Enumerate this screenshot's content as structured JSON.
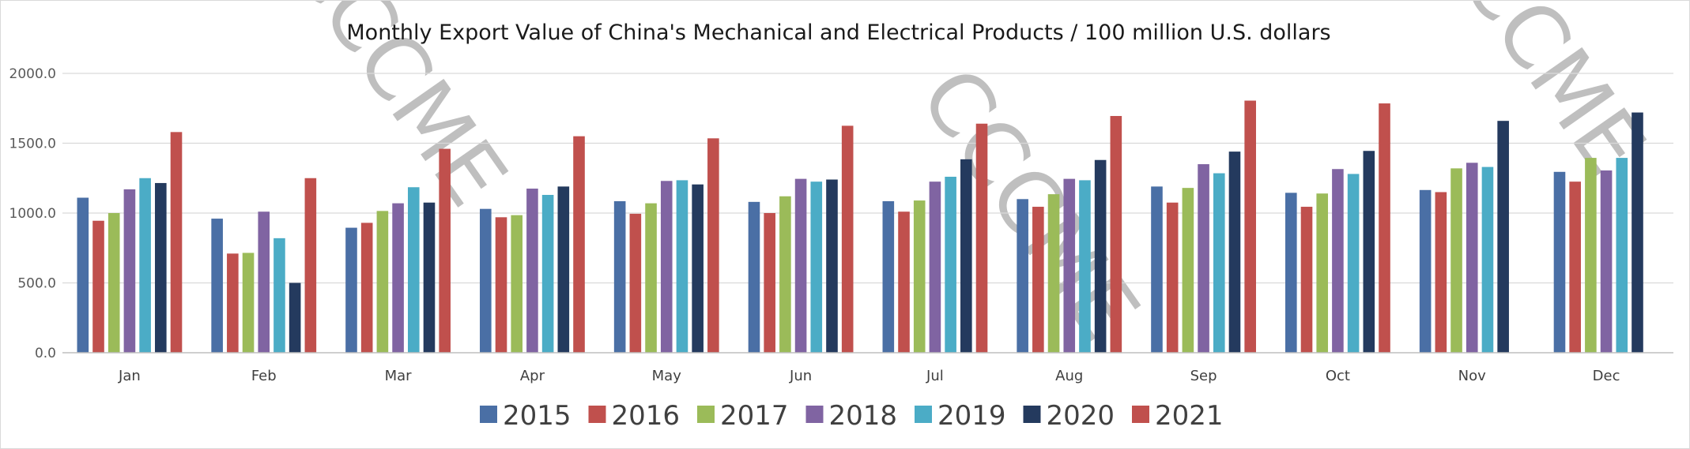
{
  "chart_data": {
    "type": "bar",
    "title": "Monthly Export Value of China's Mechanical and Electrical Products / 100 million U.S. dollars",
    "categories": [
      "Jan",
      "Feb",
      "Mar",
      "Apr",
      "May",
      "Jun",
      "Jul",
      "Aug",
      "Sep",
      "Oct",
      "Nov",
      "Dec"
    ],
    "ylim": [
      0,
      2000
    ],
    "yticks": [
      "0.0",
      "500.0",
      "1000.0",
      "1500.0",
      "2000.0"
    ],
    "grid": true,
    "legend_position": "bottom",
    "watermark": "CCCME",
    "series": [
      {
        "name": "2015",
        "color": "#4a6fa5",
        "values": [
          1110,
          960,
          895,
          1030,
          1085,
          1080,
          1085,
          1100,
          1190,
          1145,
          1165,
          1295
        ]
      },
      {
        "name": "2016",
        "color": "#c0504d",
        "values": [
          945,
          710,
          930,
          970,
          995,
          1000,
          1010,
          1045,
          1075,
          1045,
          1150,
          1225
        ]
      },
      {
        "name": "2017",
        "color": "#9bbb59",
        "values": [
          1000,
          715,
          1015,
          985,
          1070,
          1120,
          1090,
          1135,
          1180,
          1140,
          1320,
          1395
        ]
      },
      {
        "name": "2018",
        "color": "#8064a2",
        "values": [
          1170,
          1010,
          1070,
          1175,
          1230,
          1245,
          1225,
          1245,
          1350,
          1315,
          1360,
          1305
        ]
      },
      {
        "name": "2019",
        "color": "#4bacc6",
        "values": [
          1250,
          820,
          1185,
          1130,
          1235,
          1225,
          1260,
          1235,
          1285,
          1280,
          1330,
          1395
        ]
      },
      {
        "name": "2020",
        "color": "#243a5e",
        "values": [
          1215,
          500,
          1075,
          1190,
          1205,
          1240,
          1385,
          1380,
          1440,
          1445,
          1660,
          1720
        ]
      },
      {
        "name": "2021",
        "color": "#c0504d",
        "values": [
          1580,
          1250,
          1460,
          1550,
          1535,
          1625,
          1640,
          1695,
          1805,
          1785,
          null,
          null
        ]
      }
    ]
  }
}
